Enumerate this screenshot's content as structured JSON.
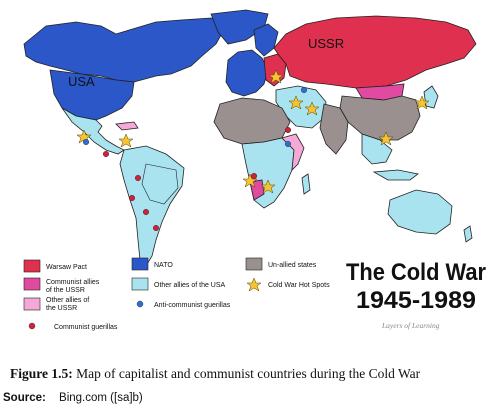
{
  "map": {
    "labels": {
      "usa": "USA",
      "ussr": "USSR"
    },
    "title_line1": "The Cold War",
    "title_line2": "1945-1989",
    "credit": "Layers of Learning",
    "legend": {
      "warsaw_pact": "Warsaw Pact",
      "nato": "NATO",
      "unallied": "Un-allied states",
      "communist_allies": "Communist allies of the USSR",
      "other_allies_usa": "Other allies of the USA",
      "hot_spots": "Cold War Hot Spots",
      "other_allies_ussr": "Other allies of the USSR",
      "anti_communist": "Anti-communist guerillas",
      "communist_guerillas": "Communist guerillas"
    },
    "colors": {
      "warsaw_pact": "#e0304f",
      "nato": "#2b57c8",
      "unallied": "#9a9090",
      "communist_allies": "#e04aa0",
      "other_allies_usa": "#a9e3ef",
      "other_allies_ussr": "#f4a9d6",
      "hot_spot": "#f5c531",
      "anti_communist_dot": "#2d6fd8",
      "communist_dot": "#d0203c"
    }
  },
  "caption": {
    "label": "Figure 1.5:",
    "text": "Map of capitalist and communist countries during the Cold War"
  },
  "source": {
    "label": "Source:",
    "text": "Bing.com ([sa]b)"
  }
}
